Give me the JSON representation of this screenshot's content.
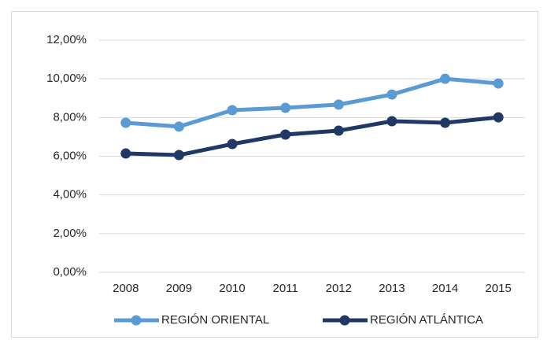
{
  "chart_data": {
    "type": "line",
    "categories": [
      "2008",
      "2009",
      "2010",
      "2011",
      "2012",
      "2013",
      "2014",
      "2015"
    ],
    "series": [
      {
        "name": "REGIÓN ORIENTAL",
        "color": "#5b9bd5",
        "values": [
          7.73,
          7.53,
          8.38,
          8.5,
          8.67,
          9.19,
          10.0,
          9.76
        ]
      },
      {
        "name": "REGIÓN ATLÁNTICA",
        "color": "#203864",
        "values": [
          6.14,
          6.06,
          6.63,
          7.12,
          7.32,
          7.81,
          7.73,
          8.01
        ]
      }
    ],
    "ylim": [
      0,
      12
    ],
    "yticks": [
      {
        "value": 0,
        "label": "0,00%"
      },
      {
        "value": 2,
        "label": "2,00%"
      },
      {
        "value": 4,
        "label": "4,00%"
      },
      {
        "value": 6,
        "label": "6,00%"
      },
      {
        "value": 8,
        "label": "8,00%"
      },
      {
        "value": 10,
        "label": "10,00%"
      },
      {
        "value": 12,
        "label": "12,00%"
      }
    ],
    "grid": true,
    "legend": "bottom"
  }
}
